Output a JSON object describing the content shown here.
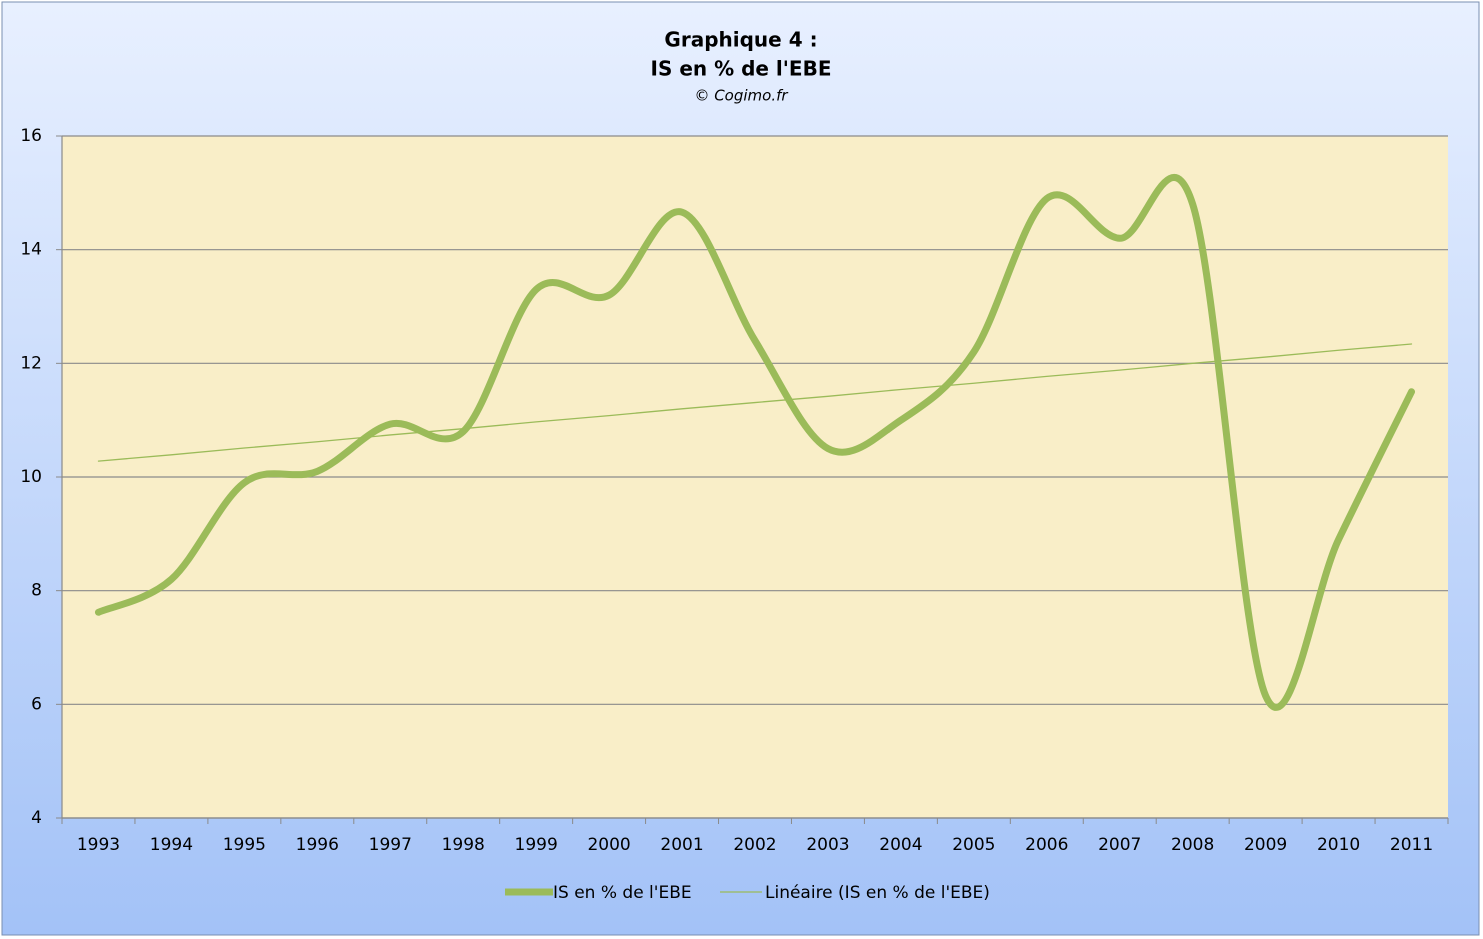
{
  "chart_data": {
    "type": "line",
    "title": "Graphique 4 :",
    "subtitle": "IS en % de l'EBE",
    "annotation": "© Cogimo.fr",
    "categories": [
      "1993",
      "1994",
      "1995",
      "1996",
      "1997",
      "1998",
      "1999",
      "2000",
      "2001",
      "2002",
      "2003",
      "2004",
      "2005",
      "2006",
      "2007",
      "2008",
      "2009",
      "2010",
      "2011"
    ],
    "series": [
      {
        "name": "IS en % de l'EBE",
        "color": "#9bbb59",
        "smooth": true,
        "values": [
          7.62,
          8.2,
          9.9,
          10.1,
          10.93,
          10.8,
          13.3,
          13.2,
          14.66,
          12.4,
          10.5,
          11.0,
          12.2,
          14.9,
          14.2,
          14.8,
          6.15,
          8.9,
          11.5
        ]
      },
      {
        "name": "Linéaire (IS en % de l'EBE)",
        "color": "#9bbb59",
        "smooth": false,
        "values": [
          10.28,
          10.39,
          10.51,
          10.62,
          10.74,
          10.85,
          10.97,
          11.08,
          11.2,
          11.31,
          11.42,
          11.54,
          11.65,
          11.77,
          11.88,
          12.0,
          12.11,
          12.23,
          12.34
        ]
      }
    ],
    "ylim": [
      4,
      16
    ],
    "yticks": [
      4,
      6,
      8,
      10,
      12,
      14,
      16
    ],
    "grid": true,
    "legend": "bottom"
  }
}
